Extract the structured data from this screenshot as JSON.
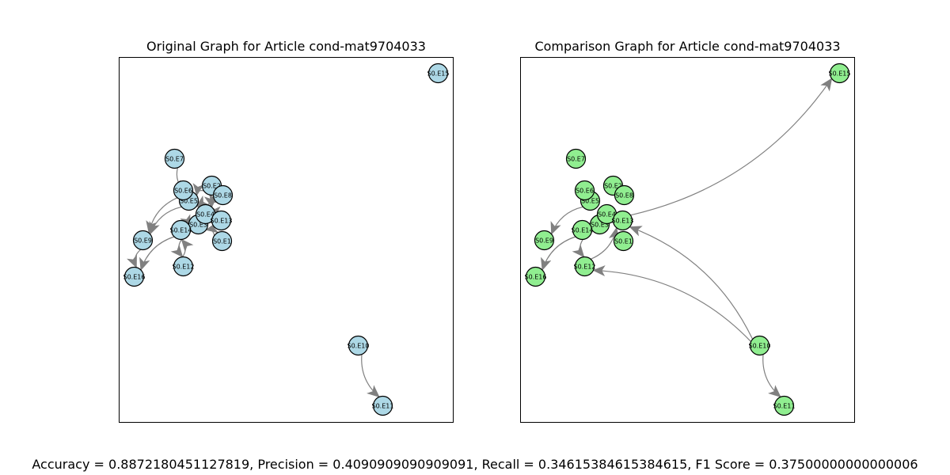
{
  "colors": {
    "original_node_fill": "#add8e6",
    "comparison_node_fill": "#90ee90",
    "edge": "#808080",
    "node_stroke": "#000000",
    "frame": "#000000"
  },
  "nodes": [
    "S0.E1",
    "S0.E2",
    "S0.E3",
    "S0.E4",
    "S0.E5",
    "S0.E6",
    "S0.E7",
    "S0.E8",
    "S0.E9",
    "S0.E10",
    "S0.E11",
    "S0.E12",
    "S0.E13",
    "S0.E14",
    "S0.E15",
    "S0.E16"
  ],
  "panels": [
    {
      "id": "original",
      "title": "Original Graph for Article cond-mat9704033",
      "node_color": "original_node_fill",
      "edges": [
        [
          "S0.E6",
          "S0.E9"
        ],
        [
          "S0.E5",
          "S0.E9"
        ],
        [
          "S0.E14",
          "S0.E16"
        ],
        [
          "S0.E9",
          "S0.E16"
        ],
        [
          "S0.E10",
          "S0.E11"
        ],
        [
          "S0.E14",
          "S0.E12"
        ],
        [
          "S0.E12",
          "S0.E14"
        ],
        [
          "S0.E7",
          "S0.E5"
        ],
        [
          "S0.E2",
          "S0.E5"
        ],
        [
          "S0.E8",
          "S0.E4"
        ],
        [
          "S0.E4",
          "S0.E5"
        ],
        [
          "S0.E13",
          "S0.E4"
        ],
        [
          "S0.E1",
          "S0.E3"
        ],
        [
          "S0.E3",
          "S0.E4"
        ],
        [
          "S0.E4",
          "S0.E2"
        ],
        [
          "S0.E3",
          "S0.E14"
        ]
      ]
    },
    {
      "id": "comparison",
      "title": "Comparison Graph for Article cond-mat9704033",
      "node_color": "comparison_node_fill",
      "edges": [
        [
          "S0.E13",
          "S0.E15"
        ],
        [
          "S0.E10",
          "S0.E13"
        ],
        [
          "S0.E10",
          "S0.E12"
        ],
        [
          "S0.E10",
          "S0.E11"
        ],
        [
          "S0.E5",
          "S0.E9"
        ],
        [
          "S0.E14",
          "S0.E16"
        ],
        [
          "S0.E12",
          "S0.E13"
        ],
        [
          "S0.E14",
          "S0.E12"
        ]
      ]
    }
  ],
  "metrics_text": "Accuracy = 0.8872180451127819, Precision = 0.4090909090909091, Recall = 0.34615384615384615, F1 Score = 0.37500000000000006"
}
